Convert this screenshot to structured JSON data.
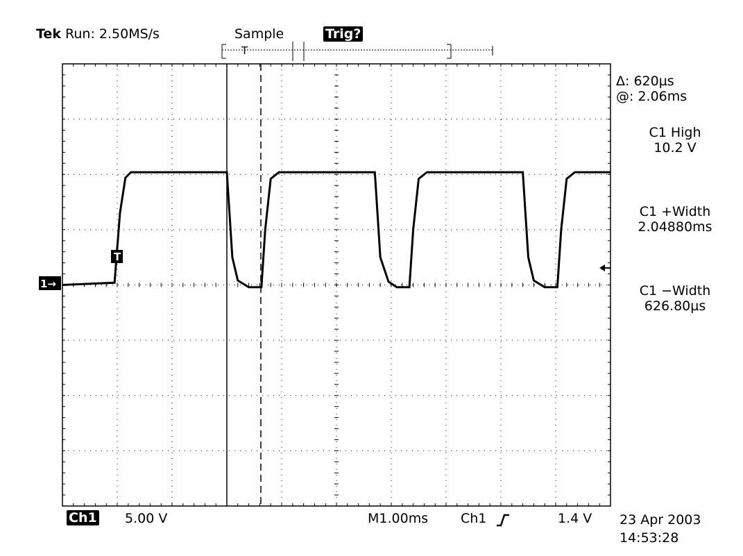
{
  "header": {
    "brand": "Tek",
    "run_status": "Run: 2.50MS/s",
    "acq_mode": "Sample",
    "trigger_status": "Trig?"
  },
  "record_indicator": {
    "trigger_marker": "T"
  },
  "readouts": {
    "cursor_delta": "Δ: 620µs",
    "cursor_at": "@: 2.06ms",
    "measurements": [
      {
        "label": "C1 High",
        "value": "10.2 V"
      },
      {
        "label": "C1 +Width",
        "value": "2.04880ms"
      },
      {
        "label": "C1 −Width",
        "value": "626.80µs"
      }
    ]
  },
  "channel_marker": "1→",
  "trigger_point_label": "T",
  "bottom_bar": {
    "channel_label": "Ch1",
    "volts_per_div": "5.00 V",
    "timebase": "M1.00ms",
    "trigger_source": "Ch1",
    "trigger_level": "1.4 V",
    "date": "23 Apr 2003",
    "time": "14:53:28"
  },
  "colors": {
    "trace": "#000000",
    "background": "#ffffff",
    "grid": "#000000"
  },
  "chart_data": {
    "type": "line",
    "title": "",
    "xlabel": "",
    "ylabel": "",
    "x_units": "ms",
    "y_units": "V",
    "xlim": [
      0,
      10
    ],
    "ylim": [
      -20,
      20
    ],
    "grid": true,
    "divisions": {
      "x": 10,
      "y": 8
    },
    "series": [
      {
        "x": [
          0,
          0.95,
          1.05,
          1.15,
          1.25,
          3.0,
          3.1,
          3.2,
          3.4,
          3.63,
          3.7,
          3.8,
          3.95,
          5.7,
          5.8,
          5.95,
          6.1,
          6.33,
          6.4,
          6.5,
          6.65,
          8.4,
          8.5,
          8.6,
          8.8,
          9.03,
          9.1,
          9.2,
          9.35,
          10
        ],
        "y": [
          0,
          0.2,
          6.5,
          9.7,
          10.2,
          10.2,
          2.5,
          0.4,
          -0.2,
          -0.2,
          5,
          9.6,
          10.2,
          10.2,
          2.5,
          0.3,
          -0.2,
          -0.2,
          5,
          9.6,
          10.2,
          10.2,
          2.5,
          0.4,
          -0.2,
          -0.2,
          5,
          9.6,
          10.2,
          10.2
        ]
      }
    ],
    "cursors": {
      "type": "vertical",
      "positions_ms": [
        3.0,
        3.62
      ]
    },
    "channel_ground_level": 0,
    "trigger_level": 1.4
  }
}
